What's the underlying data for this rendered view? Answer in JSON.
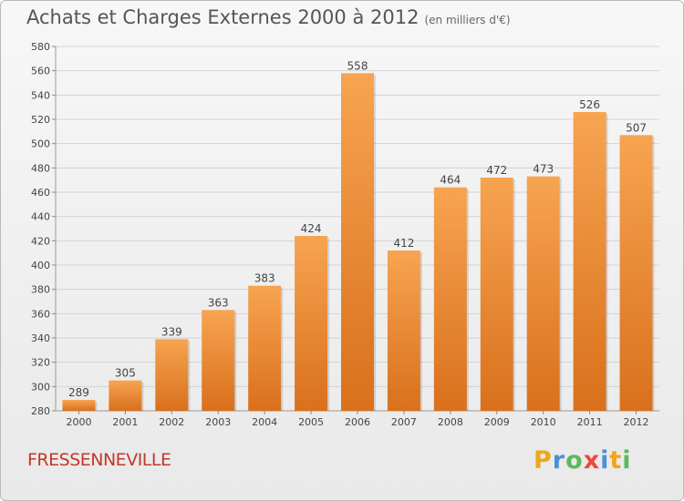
{
  "title": "Achats et Charges Externes 2000 à 2012",
  "subtitle": "(en milliers d'€)",
  "location": "FRESSENNEVILLE",
  "logo": {
    "letters": [
      "P",
      "r",
      "o",
      "x",
      "i",
      "t",
      "i"
    ],
    "colors": [
      "#f0a51a",
      "#4a90d9",
      "#5cb85c",
      "#e84c3d",
      "#4a90d9",
      "#f0a51a",
      "#5cb85c"
    ]
  },
  "chart_data": {
    "type": "bar",
    "categories": [
      "2000",
      "2001",
      "2002",
      "2003",
      "2004",
      "2005",
      "2006",
      "2007",
      "2008",
      "2009",
      "2010",
      "2011",
      "2012"
    ],
    "values": [
      289,
      305,
      339,
      363,
      383,
      424,
      558,
      412,
      464,
      472,
      473,
      526,
      507
    ],
    "ylim": [
      280,
      580
    ],
    "yticks": [
      280,
      300,
      320,
      340,
      360,
      380,
      400,
      420,
      440,
      460,
      480,
      500,
      520,
      540,
      560,
      580
    ],
    "grid": true,
    "colors": {
      "bar_top": "#f7a451",
      "bar_bottom": "#d9701c",
      "grid": "#d3d3d3",
      "text": "#444444"
    }
  }
}
